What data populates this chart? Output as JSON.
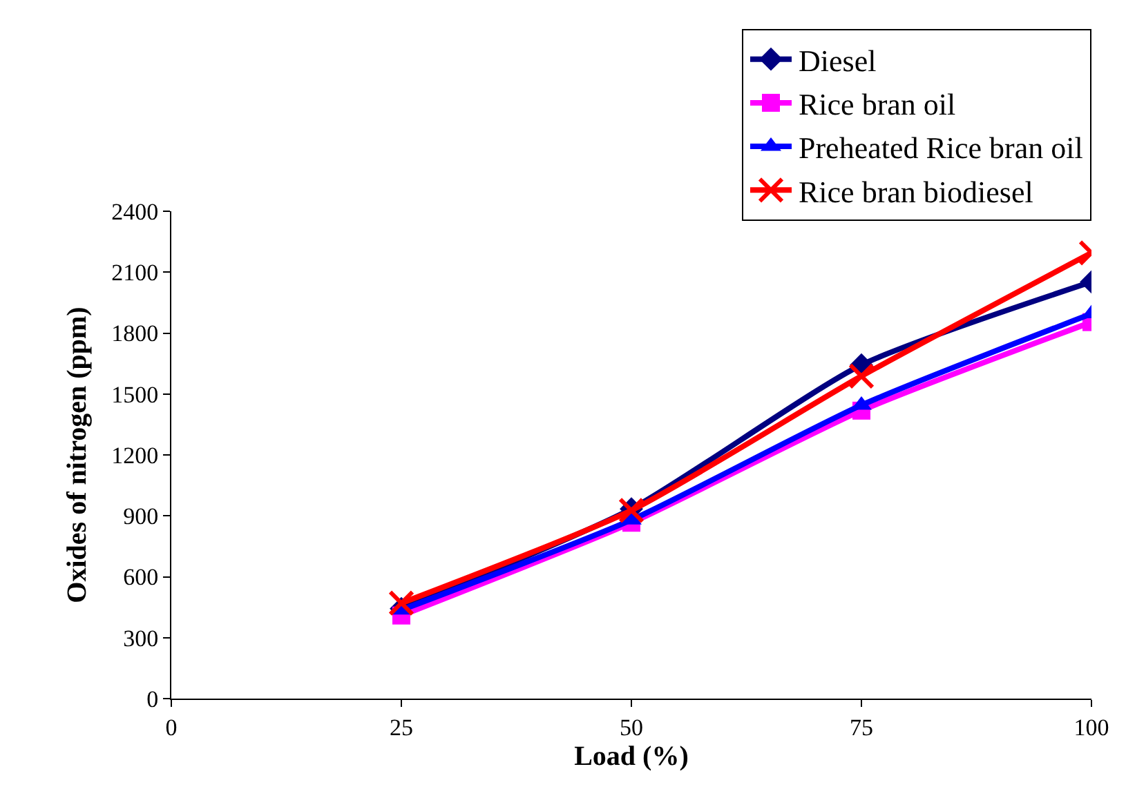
{
  "chart_data": {
    "type": "line",
    "xlabel": "Load (%)",
    "ylabel": "Oxides of nitrogen (ppm)",
    "x": [
      25,
      50,
      75,
      100
    ],
    "series": [
      {
        "name": "Diesel",
        "color": "#000080",
        "marker": "diamond",
        "values": [
          443,
          934,
          1643,
          2052
        ]
      },
      {
        "name": "Rice bran oil",
        "color": "#ff00ff",
        "marker": "square",
        "values": [
          409,
          866,
          1418,
          1854
        ]
      },
      {
        "name": "Preheated Rice bran oil",
        "color": "#0000ff",
        "marker": "triangle",
        "values": [
          436,
          880,
          1445,
          1895
        ]
      },
      {
        "name": "Rice bran biodiesel",
        "color": "#ff0000",
        "marker": "cross",
        "values": [
          470,
          927,
          1588,
          2195
        ]
      }
    ],
    "xlim": [
      0,
      100
    ],
    "xticks": [
      0,
      25,
      50,
      75,
      100
    ],
    "ylim": [
      0,
      2400
    ],
    "yticks": [
      0,
      300,
      600,
      900,
      1200,
      1500,
      1800,
      2100,
      2400
    ],
    "grid": false,
    "legend": "top right",
    "line_style": "solid"
  }
}
